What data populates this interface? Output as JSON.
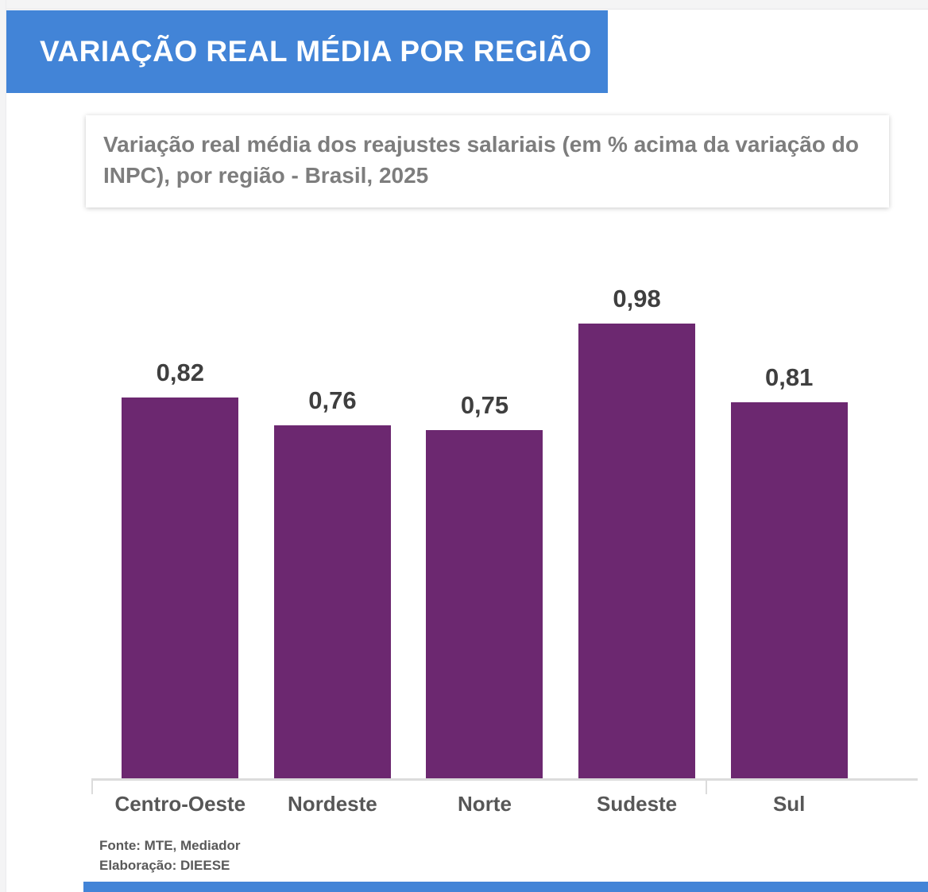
{
  "colors": {
    "banner_blue": "#4284d7",
    "bar_purple": "#6c2870",
    "axis_gray": "#dcdcdc",
    "frame_gray": "#f4f4f5"
  },
  "header": {
    "title": "VARIAÇÃO REAL MÉDIA POR REGIÃO"
  },
  "subtitle_card": {
    "text": "Variação real média dos reajustes salariais (em % acima da variação do INPC), por região - Brasil, 2025"
  },
  "chart_data": {
    "type": "bar",
    "categories": [
      "Centro-Oeste",
      "Nordeste",
      "Norte",
      "Sudeste",
      "Sul"
    ],
    "values": [
      0.82,
      0.76,
      0.75,
      0.98,
      0.81
    ],
    "value_labels": [
      "0,82",
      "0,76",
      "0,75",
      "0,98",
      "0,81"
    ],
    "title": "Variação real média dos reajustes salariais (em % acima da variação do INPC), por região - Brasil, 2025",
    "xlabel": "",
    "ylabel": "",
    "ylim": [
      0,
      1.05
    ],
    "bar_color": "#6c2870",
    "grid": false,
    "legend": false,
    "data_labels": true,
    "decimal_separator": ","
  },
  "footer": {
    "source": "Fonte: MTE, Mediador",
    "elaboration": "Elaboração: DIEESE"
  }
}
